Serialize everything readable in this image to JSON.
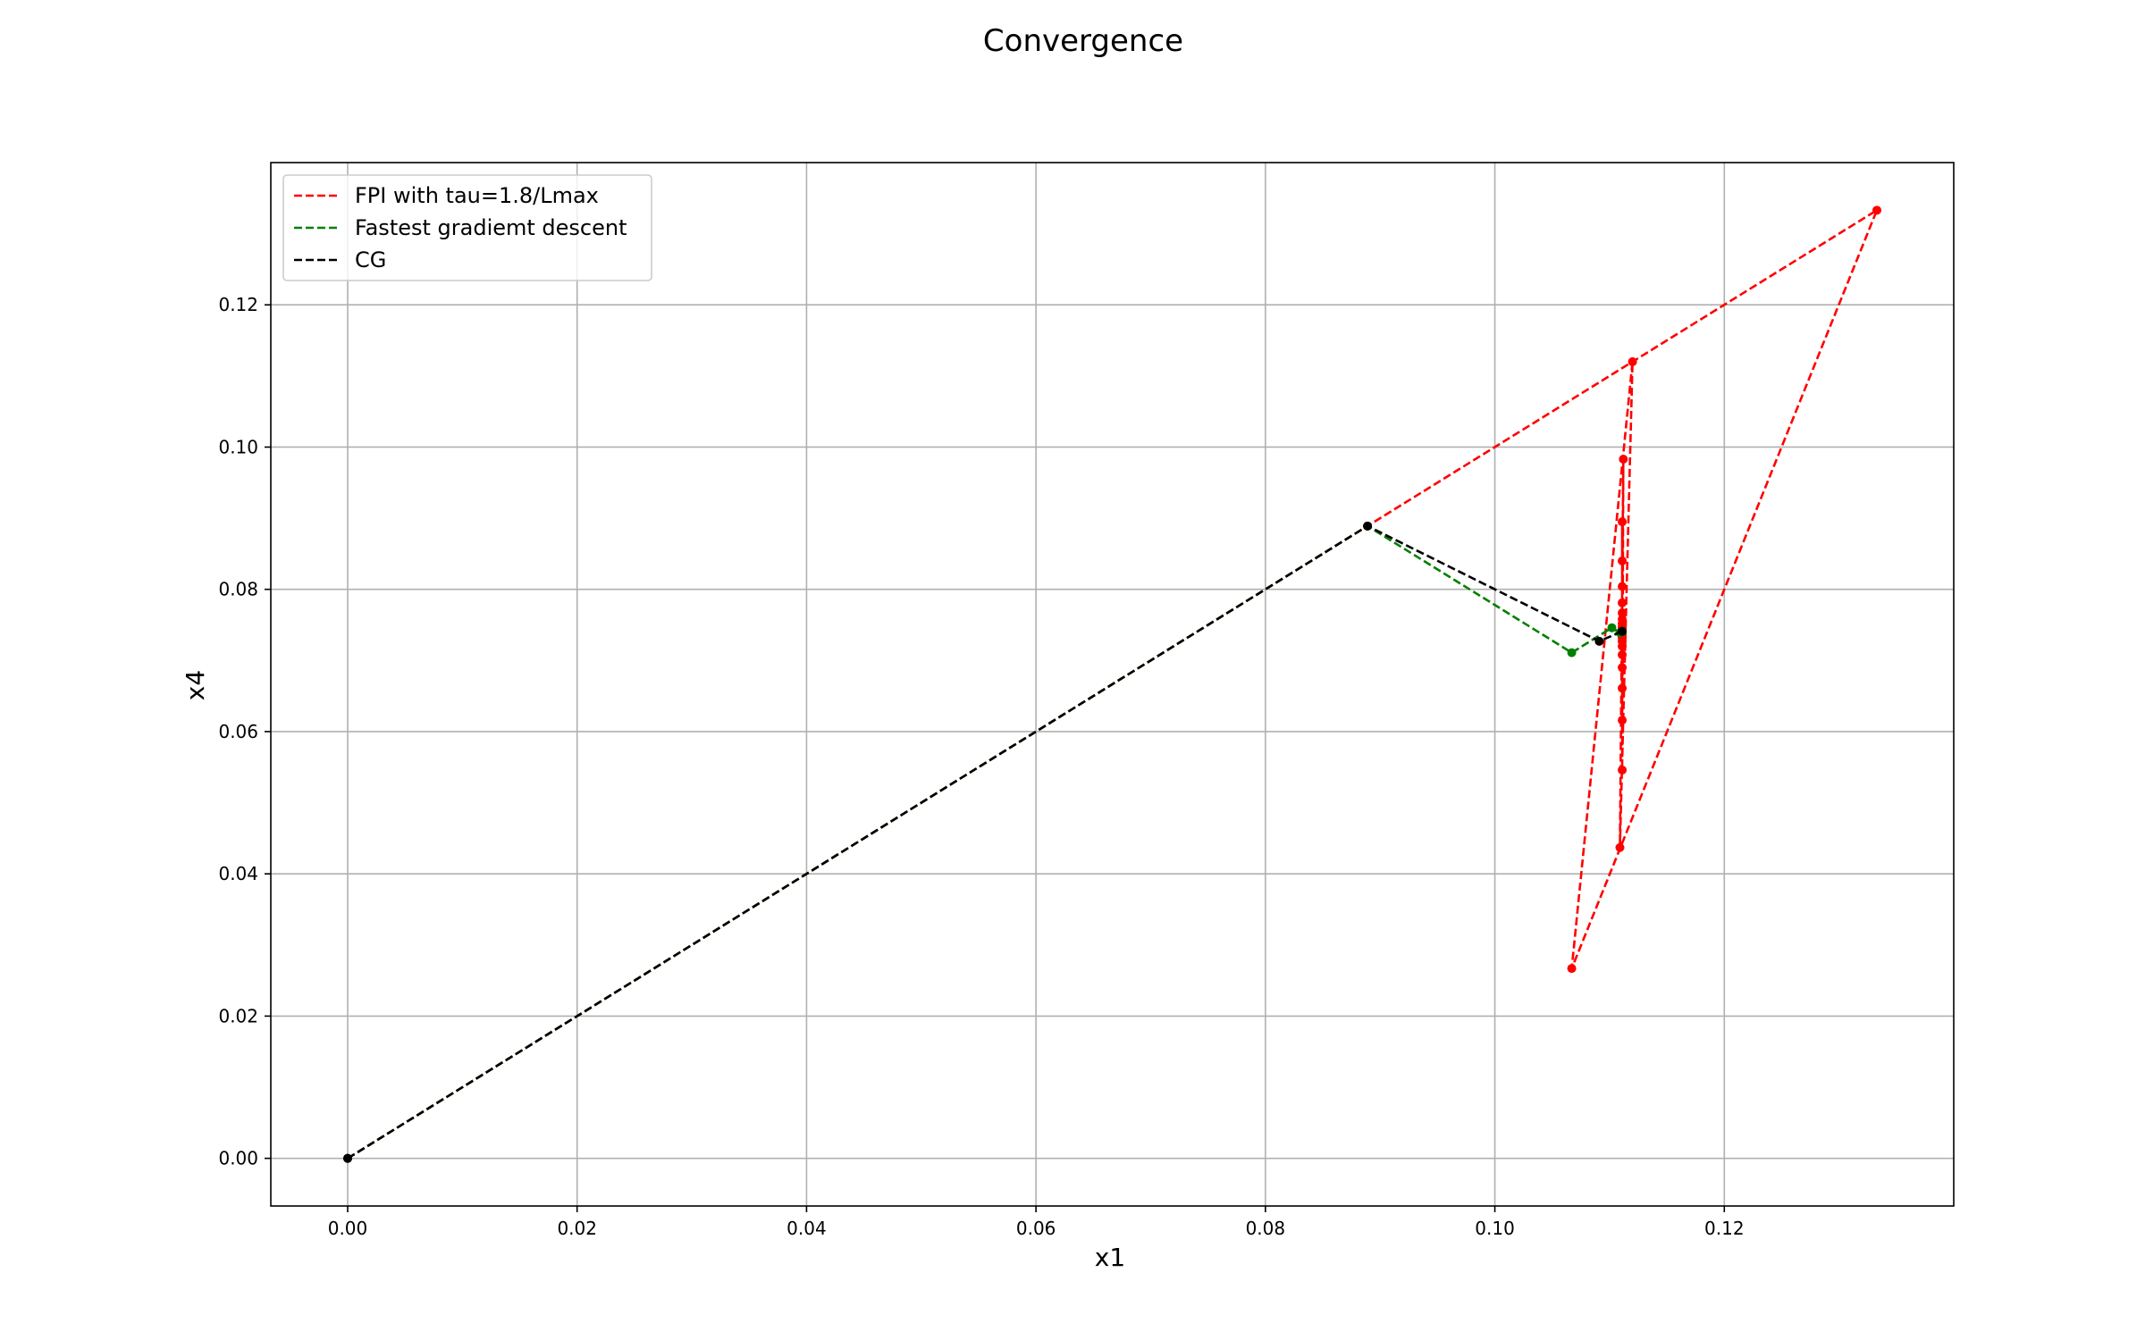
{
  "chart_data": {
    "type": "line",
    "title": "Convergence",
    "xlabel": "x1",
    "ylabel": "x4",
    "xlim": [
      -0.0067,
      0.14
    ],
    "ylim": [
      -0.0067,
      0.14
    ],
    "xticks": [
      0.0,
      0.02,
      0.04,
      0.06,
      0.08,
      0.1,
      0.12
    ],
    "yticks": [
      0.0,
      0.02,
      0.04,
      0.06,
      0.08,
      0.1,
      0.12
    ],
    "xtick_labels": [
      "0.00",
      "0.02",
      "0.04",
      "0.06",
      "0.08",
      "0.10",
      "0.12"
    ],
    "ytick_labels": [
      "0.00",
      "0.02",
      "0.04",
      "0.06",
      "0.08",
      "0.10",
      "0.12"
    ],
    "grid": true,
    "legend_position": "top-left",
    "series": [
      {
        "name": "FPI with tau=1.8/Lmax",
        "color": "#ff0000",
        "points": [
          [
            0.0,
            0.0
          ],
          [
            0.0889,
            0.0889
          ],
          [
            0.1333,
            0.1333
          ],
          [
            0.1067,
            0.0267
          ],
          [
            0.112,
            0.112
          ],
          [
            0.1109,
            0.0437
          ],
          [
            0.1112,
            0.0983
          ],
          [
            0.1111,
            0.0546
          ],
          [
            0.1111,
            0.0895
          ],
          [
            0.1111,
            0.0616
          ],
          [
            0.1111,
            0.084
          ],
          [
            0.1111,
            0.0661
          ],
          [
            0.1111,
            0.0804
          ],
          [
            0.1111,
            0.069
          ],
          [
            0.1111,
            0.0781
          ],
          [
            0.1111,
            0.0708
          ],
          [
            0.1111,
            0.0767
          ],
          [
            0.1111,
            0.072
          ],
          [
            0.1111,
            0.0758
          ],
          [
            0.1111,
            0.0727
          ],
          [
            0.1111,
            0.0752
          ],
          [
            0.1111,
            0.0732
          ],
          [
            0.1111,
            0.0748
          ],
          [
            0.1111,
            0.0735
          ],
          [
            0.1111,
            0.0745
          ],
          [
            0.1111,
            0.0737
          ],
          [
            0.1111,
            0.0743
          ],
          [
            0.1111,
            0.0738
          ],
          [
            0.1111,
            0.0742
          ],
          [
            0.1111,
            0.0739
          ],
          [
            0.1111,
            0.0741
          ]
        ]
      },
      {
        "name": "Fastest gradiemt descent",
        "color": "#008000",
        "points": [
          [
            0.0,
            0.0
          ],
          [
            0.0889,
            0.0889
          ],
          [
            0.1067,
            0.0711
          ],
          [
            0.1102,
            0.0746
          ],
          [
            0.1109,
            0.0739
          ],
          [
            0.1111,
            0.0741
          ],
          [
            0.1111,
            0.074
          ]
        ]
      },
      {
        "name": "CG",
        "color": "#000000",
        "points": [
          [
            0.0,
            0.0
          ],
          [
            0.0889,
            0.0889
          ],
          [
            0.1091,
            0.0727
          ],
          [
            0.1111,
            0.0741
          ]
        ]
      }
    ]
  }
}
